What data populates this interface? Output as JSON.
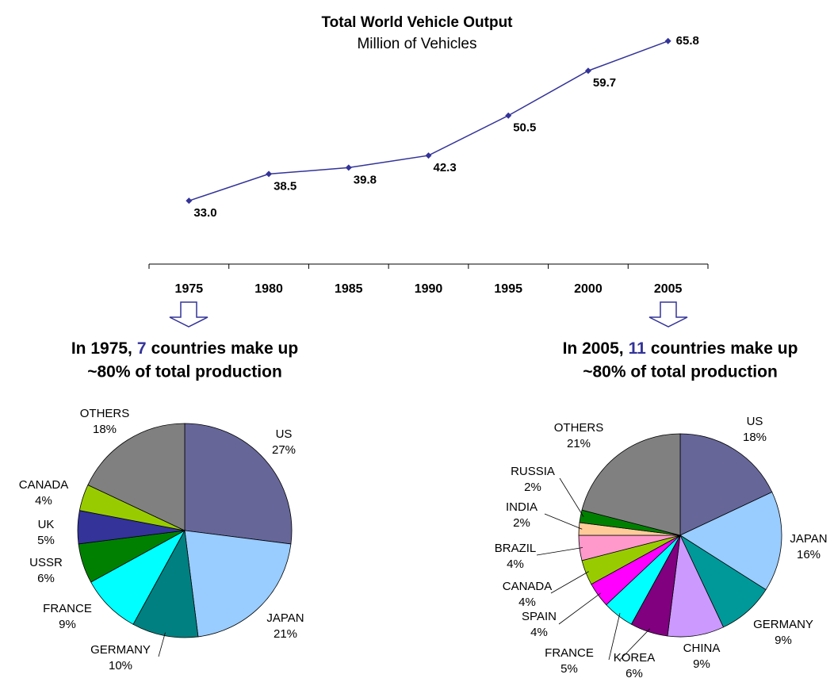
{
  "chart_data": [
    {
      "type": "line",
      "title": "Total World Vehicle Output",
      "subtitle": "Million of Vehicles",
      "categories": [
        "1975",
        "1980",
        "1985",
        "1990",
        "1995",
        "2000",
        "2005"
      ],
      "values": [
        33.0,
        38.5,
        39.8,
        42.3,
        50.5,
        59.7,
        65.8
      ],
      "value_labels": [
        "33.0",
        "38.5",
        "39.8",
        "42.3",
        "50.5",
        "59.7",
        "65.8"
      ],
      "color": "#333399",
      "ylim": [
        20,
        70
      ]
    },
    {
      "type": "pie",
      "title": [
        "In 1975,",
        "7",
        "countries make up",
        "~80% of total production"
      ],
      "categories": [
        "US",
        "JAPAN",
        "GERMANY",
        "FRANCE",
        "USSR",
        "UK",
        "CANADA",
        "OTHERS"
      ],
      "values": [
        27,
        21,
        10,
        9,
        6,
        5,
        4,
        18
      ],
      "value_labels": [
        "27%",
        "21%",
        "10%",
        "9%",
        "6%",
        "5%",
        "4%",
        "18%"
      ],
      "colors": [
        "#666699",
        "#99ccff",
        "#008080",
        "#00ffff",
        "#008000",
        "#333399",
        "#99cc00",
        "#808080"
      ]
    },
    {
      "type": "pie",
      "title": [
        "In 2005,",
        "11",
        "countries make up",
        "~80% of total production"
      ],
      "categories": [
        "US",
        "JAPAN",
        "GERMANY",
        "CHINA",
        "KOREA",
        "FRANCE",
        "SPAIN",
        "CANADA",
        "BRAZIL",
        "INDIA",
        "RUSSIA",
        "OTHERS"
      ],
      "values": [
        18,
        16,
        9,
        9,
        6,
        5,
        4,
        4,
        4,
        2,
        2,
        21
      ],
      "value_labels": [
        "18%",
        "16%",
        "9%",
        "9%",
        "6%",
        "5%",
        "4%",
        "4%",
        "4%",
        "2%",
        "2%",
        "21%"
      ],
      "colors": [
        "#666699",
        "#99ccff",
        "#009999",
        "#cc99ff",
        "#800080",
        "#00ffff",
        "#ff00ff",
        "#99cc00",
        "#ff99cc",
        "#ffcc99",
        "#008000",
        "#808080"
      ]
    }
  ]
}
